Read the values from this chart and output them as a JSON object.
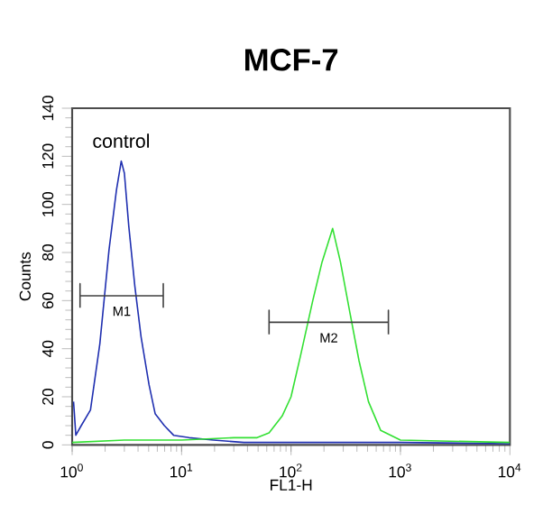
{
  "chart_data": {
    "type": "line",
    "title": "MCF-7",
    "xlabel": "FL1-H",
    "ylabel": "Counts",
    "log": "x",
    "xlim": [
      1,
      10000
    ],
    "ylim": [
      0,
      140
    ],
    "xticks": [
      {
        "value": 1,
        "label": "10$^{0}$"
      },
      {
        "value": 10,
        "label": "10$^{1}$"
      },
      {
        "value": 100,
        "label": "10$^{2}$"
      },
      {
        "value": 1000,
        "label": "10$^{3}$"
      },
      {
        "value": 10000,
        "label": "10$^{4}$"
      }
    ],
    "yticks": [
      0,
      20,
      40,
      60,
      80,
      100,
      120,
      140
    ],
    "series": [
      {
        "name": "control",
        "color": "#1f2fb0",
        "x": [
          1.03,
          1.08,
          1.21,
          1.47,
          1.79,
          2.17,
          2.54,
          2.81,
          3.0,
          3.29,
          3.74,
          4.26,
          5.04,
          5.73,
          6.96,
          8.45,
          11.7,
          19.6,
          37,
          100,
          1000,
          10000
        ],
        "values": [
          18,
          4,
          8,
          14.5,
          42,
          81,
          106,
          118,
          113,
          91,
          66,
          45,
          25,
          13,
          8,
          4,
          3,
          2,
          1,
          1,
          1,
          0.5
        ]
      },
      {
        "color": "#33e033",
        "x": [
          1,
          3,
          10,
          30,
          49,
          63,
          83,
          100,
          122,
          158,
          192,
          240,
          283,
          345,
          418,
          510,
          660,
          1000,
          10000
        ],
        "values": [
          1,
          2,
          2,
          3,
          3,
          5,
          12,
          20,
          37,
          60,
          76,
          90,
          76,
          55,
          35,
          18,
          6,
          2,
          1
        ]
      },
      {
        "name": "M1",
        "color": "#404040",
        "x": [
          1.18,
          1.18,
          1.18,
          6.8,
          6.8,
          6.8
        ],
        "values": [
          57,
          67,
          62,
          62,
          67,
          57
        ]
      },
      {
        "name": "M2",
        "color": "#404040",
        "x": [
          63,
          63,
          63,
          776,
          776,
          776
        ],
        "values": [
          46,
          56,
          51,
          51,
          56,
          46
        ]
      }
    ]
  }
}
